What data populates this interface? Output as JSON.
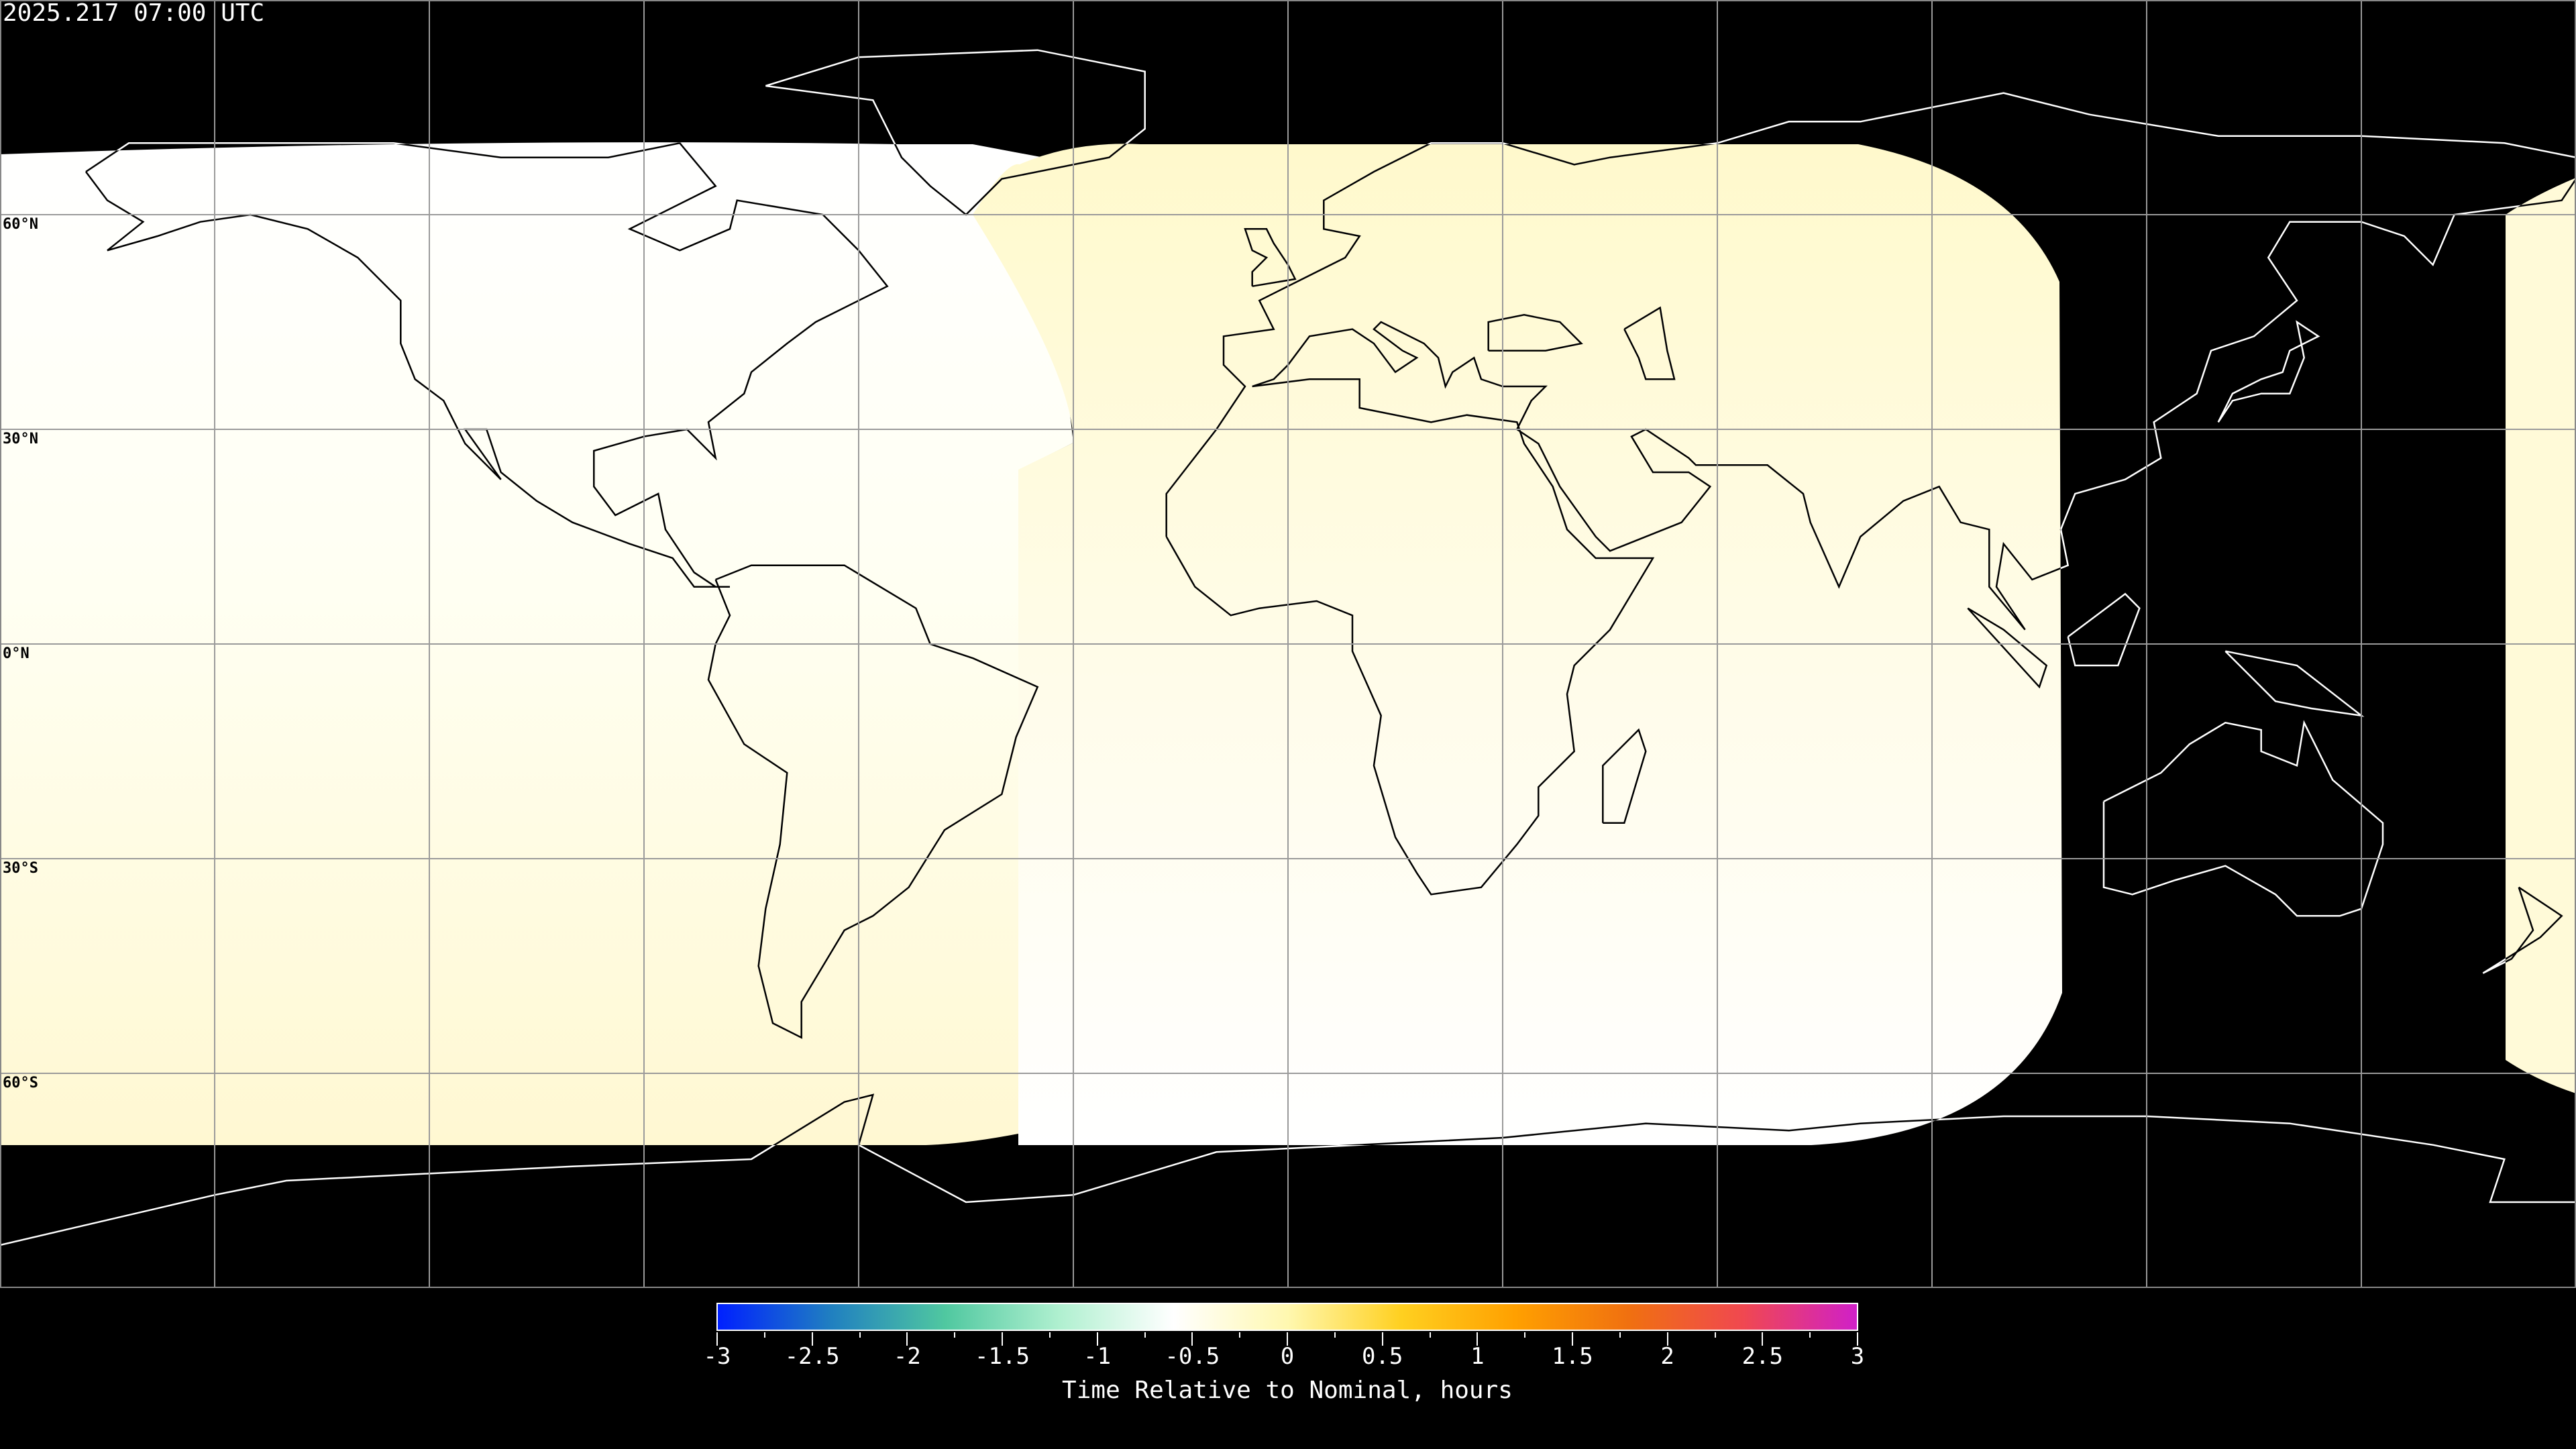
{
  "title": "2025.217 07:00 UTC",
  "lat_labels": [
    "60°N",
    "30°N",
    "0°N",
    "30°S",
    "60°S"
  ],
  "colorbar": {
    "ticks": [
      "-3",
      "-2.5",
      "-2",
      "-1.5",
      "-1",
      "-0.5",
      "0",
      "0.5",
      "1",
      "1.5",
      "2",
      "2.5",
      "3"
    ],
    "range": [
      -3,
      3
    ],
    "label": "Time Relative to Nominal, hours",
    "colors": [
      "#0020ff",
      "#2080c0",
      "#50c8a0",
      "#b0f0d0",
      "#ffffff",
      "#fff8b0",
      "#ffd020",
      "#ffa000",
      "#f07010",
      "#f04850",
      "#d020c8"
    ]
  },
  "colors": {
    "background": "#000000",
    "swath_light": "#fffff0",
    "swath_yellow": "#fffad0",
    "coastline": "#ffffff",
    "grid": "#a0a0a0"
  }
}
